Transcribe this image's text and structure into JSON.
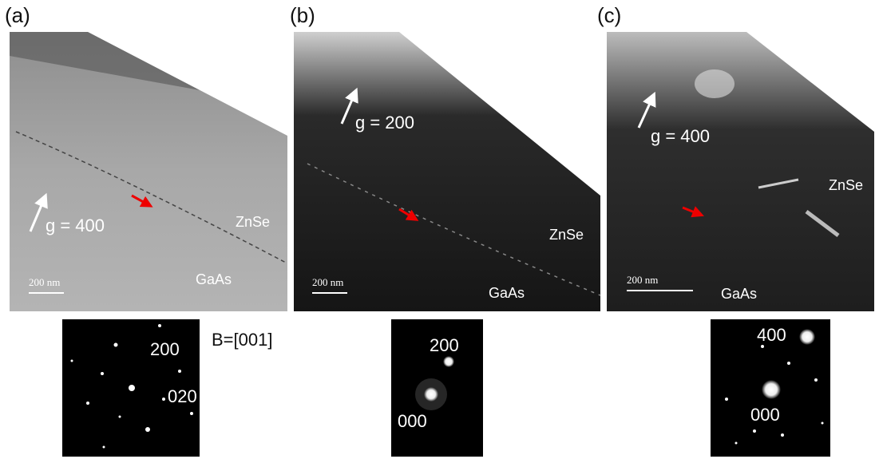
{
  "panels": [
    {
      "label": "(a)",
      "g_label": "g = 400",
      "top_layer": "ZnSe",
      "substrate": "GaAs",
      "scale_bar": "200 nm",
      "spots": [
        "200",
        "020"
      ],
      "zone_axis": "B=[001]"
    },
    {
      "label": "(b)",
      "g_label": "g = 200",
      "top_layer": "ZnSe",
      "substrate": "GaAs",
      "scale_bar": "200 nm",
      "spots": [
        "200",
        "000"
      ]
    },
    {
      "label": "(c)",
      "g_label": "g = 400",
      "top_layer": "ZnSe",
      "substrate": "GaAs",
      "scale_bar": "200 nm",
      "spots": [
        "400",
        "000"
      ]
    }
  ]
}
